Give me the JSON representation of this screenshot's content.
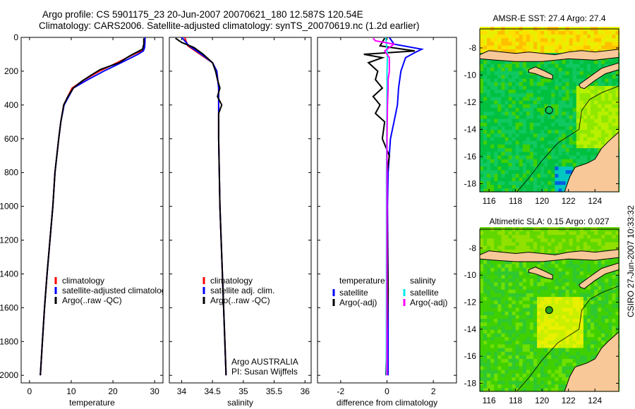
{
  "header": {
    "line1": "Argo profile: CS 5901175_23 20-Jun-2007 20070621_180 12.587S 120.54E",
    "line2": "Climatology: CARS2006. Satellite-adjusted climatology: synTS_20070619.nc (1.2d earlier)"
  },
  "credit": "CSIRO 27-Jun-2007 10:33:32",
  "colors": {
    "climatology": "#ff0000",
    "satellite": "#0000ff",
    "argo": "#000000",
    "sal_satellite": "#00e8e8",
    "sal_argo": "#ff00ff",
    "land": "#f8c898"
  },
  "chart_data": [
    {
      "type": "line",
      "id": "temperature",
      "xlabel": "temperature",
      "ylabel": "depth",
      "xlim": [
        -2,
        32
      ],
      "ylim": [
        0,
        2045
      ],
      "xticks": [
        0,
        10,
        20,
        30
      ],
      "yticks": [
        0,
        200,
        400,
        600,
        800,
        1000,
        1200,
        1400,
        1600,
        1800,
        2000
      ],
      "legend": [
        "climatology",
        "satellite-adjusted climatology",
        "Argo(..raw -QC)"
      ],
      "series": [
        {
          "name": "climatology",
          "color": "climatology",
          "depth": [
            0,
            60,
            80,
            100,
            150,
            200,
            250,
            300,
            400,
            500,
            600,
            800,
            1000,
            1200,
            1400,
            1600,
            1800,
            2000
          ],
          "values": [
            27.7,
            27.6,
            26.8,
            25,
            21,
            16.8,
            13.2,
            10.2,
            8.2,
            7.5,
            7,
            6.1,
            5.6,
            4.9,
            4.2,
            3.6,
            3.1,
            2.6
          ]
        },
        {
          "name": "satellite-adjusted climatology",
          "color": "satellite",
          "depth": [
            0,
            60,
            80,
            100,
            150,
            200,
            250,
            300,
            400,
            500,
            600,
            800,
            1000,
            1200,
            1400,
            1600,
            1800,
            2000
          ],
          "values": [
            27.7,
            27.6,
            27.3,
            26,
            22,
            17.8,
            14,
            10.5,
            8.3,
            7.5,
            7,
            6.1,
            5.6,
            4.9,
            4.2,
            3.6,
            3.1,
            2.6
          ]
        },
        {
          "name": "Argo(..raw -QC)",
          "color": "argo",
          "depth": [
            5,
            40,
            70,
            90,
            110,
            150,
            190,
            220,
            260,
            300,
            350,
            400,
            500,
            600,
            800,
            1000,
            1200,
            1400,
            1600,
            1800,
            2000
          ],
          "values": [
            27.4,
            27.4,
            27.1,
            25.5,
            24,
            21.5,
            17,
            15,
            12.5,
            10.5,
            9.2,
            8.2,
            7.5,
            7,
            6.1,
            5.6,
            4.9,
            4.2,
            3.6,
            3.1,
            2.6
          ]
        }
      ]
    },
    {
      "type": "line",
      "id": "salinity",
      "xlabel": "salinity",
      "xlim": [
        33.8,
        36.1
      ],
      "ylim": [
        0,
        2045
      ],
      "xticks": [
        34,
        34.5,
        35,
        35.5,
        36
      ],
      "legend": [
        "climatology",
        "satellite adj. clim.",
        "Argo(..raw -QC)"
      ],
      "annotation": [
        "Argo AUSTRALIA",
        "PI: Susan Wijffels"
      ],
      "series": [
        {
          "name": "climatology",
          "color": "climatology",
          "depth": [
            0,
            50,
            100,
            150,
            200,
            300,
            400,
            600,
            1000,
            1400,
            1800,
            2000
          ],
          "values": [
            34.05,
            34.1,
            34.3,
            34.5,
            34.57,
            34.6,
            34.6,
            34.6,
            34.62,
            34.66,
            34.7,
            34.72
          ]
        },
        {
          "name": "satellite adj. clim.",
          "color": "satellite",
          "depth": [
            0,
            50,
            100,
            150,
            200,
            300,
            400,
            600,
            1000,
            1400,
            1800,
            2000
          ],
          "values": [
            34.0,
            34.12,
            34.32,
            34.5,
            34.57,
            34.6,
            34.6,
            34.6,
            34.62,
            34.66,
            34.7,
            34.72
          ]
        },
        {
          "name": "Argo(..raw -QC)",
          "color": "argo",
          "depth": [
            5,
            30,
            60,
            100,
            150,
            200,
            250,
            300,
            350,
            400,
            450,
            600,
            1000,
            1400,
            1800,
            2000
          ],
          "values": [
            33.9,
            34.0,
            34.2,
            34.35,
            34.5,
            34.55,
            34.58,
            34.62,
            34.58,
            34.65,
            34.6,
            34.6,
            34.62,
            34.66,
            34.7,
            34.72
          ]
        }
      ]
    },
    {
      "type": "line",
      "id": "difference",
      "xlabel": "difference from climatology",
      "xlim": [
        -3,
        3
      ],
      "ylim": [
        0,
        2045
      ],
      "xticks": [
        -2,
        0,
        2
      ],
      "legend_temperature_title": "temperature",
      "legend_salinity_title": "salinity",
      "legend": [
        "satellite",
        "Argo(-adj)",
        "satellite",
        "Argo(-adj)"
      ],
      "series": [
        {
          "name": "temperature satellite",
          "color": "satellite",
          "depth": [
            0,
            40,
            70,
            90,
            120,
            200,
            300,
            400,
            500,
            600,
            800,
            1000,
            1500,
            2000
          ],
          "values": [
            0.1,
            0.3,
            1.5,
            1.2,
            0.8,
            0.6,
            0.5,
            0.45,
            0.3,
            0.15,
            0.05,
            0.02,
            0.05,
            0.05
          ]
        },
        {
          "name": "temperature Argo(-adj)",
          "color": "argo",
          "depth": [
            5,
            50,
            80,
            100,
            120,
            150,
            200,
            250,
            300,
            350,
            400,
            450,
            500,
            600,
            700,
            800,
            1000,
            1500,
            2000
          ],
          "values": [
            -0.1,
            -0.3,
            1.2,
            -1,
            -0.2,
            -0.8,
            -0.4,
            -0.5,
            -0.2,
            -0.6,
            -0.3,
            -0.5,
            -0.1,
            -0.2,
            0.1,
            0,
            0,
            0.05,
            -0.05
          ]
        },
        {
          "name": "salinity satellite",
          "color": "sal_satellite",
          "depth": [
            0,
            50,
            100,
            200,
            400,
            800,
            1200,
            2000
          ],
          "values": [
            -0.05,
            -0.02,
            0.02,
            0.0,
            0.0,
            -0.02,
            -0.02,
            -0.03
          ]
        },
        {
          "name": "salinity Argo(-adj)",
          "color": "sal_argo",
          "depth": [
            5,
            20,
            40,
            80,
            120,
            200,
            250,
            300,
            400,
            600,
            1000,
            2000
          ],
          "values": [
            -0.6,
            -0.5,
            0.3,
            -0.1,
            0.1,
            0.1,
            0.05,
            0.05,
            0.02,
            0,
            0,
            0
          ]
        }
      ]
    },
    {
      "type": "heatmap",
      "id": "sst-map",
      "title": "AMSR-E SST: 27.4 Argo: 27.4",
      "xlim": [
        115.3,
        125.8
      ],
      "ylim": [
        -18.6,
        -6.6
      ],
      "xticks": [
        116,
        118,
        120,
        122,
        124
      ],
      "yticks": [
        -8,
        -10,
        -12,
        -14,
        -16,
        -18
      ],
      "marker": {
        "lon": 120.54,
        "lat": -12.587,
        "filled": false
      }
    },
    {
      "type": "heatmap",
      "id": "sla-map",
      "title": "Altimetric SLA: 0.15 Argo: 0.027",
      "xlim": [
        115.3,
        125.8
      ],
      "ylim": [
        -18.6,
        -6.6
      ],
      "xticks": [
        116,
        118,
        120,
        122,
        124
      ],
      "yticks": [
        -8,
        -10,
        -12,
        -14,
        -16,
        -18
      ],
      "marker": {
        "lon": 120.54,
        "lat": -12.587,
        "filled": true
      }
    }
  ]
}
